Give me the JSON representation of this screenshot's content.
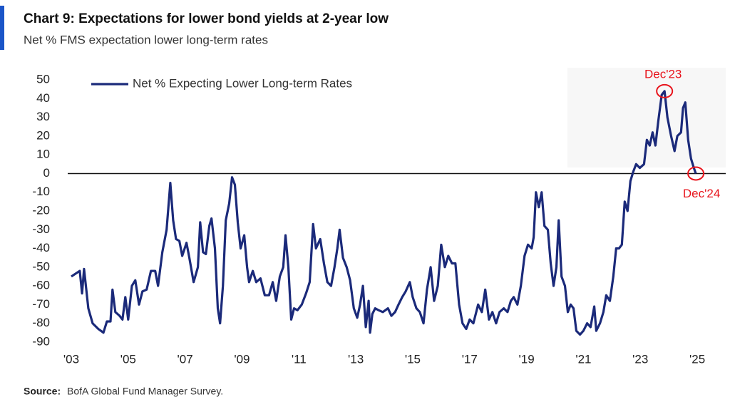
{
  "chart_data": {
    "type": "line",
    "title": "Chart 9: Expectations for lower bond yields at 2-year low",
    "subtitle": "Net % FMS expectation lower long-term rates",
    "source_label": "Source:",
    "source": "BofA Global Fund Manager Survey.",
    "xlim": [
      2002.6,
      2026.0
    ],
    "xticks": [
      {
        "value": 2003,
        "label": "'03"
      },
      {
        "value": 2005,
        "label": "'05"
      },
      {
        "value": 2007,
        "label": "'07"
      },
      {
        "value": 2009,
        "label": "'09"
      },
      {
        "value": 2011,
        "label": "'11"
      },
      {
        "value": 2013,
        "label": "'13"
      },
      {
        "value": 2015,
        "label": "'15"
      },
      {
        "value": 2017,
        "label": "'17"
      },
      {
        "value": 2019,
        "label": "'19"
      },
      {
        "value": 2021,
        "label": "'21"
      },
      {
        "value": 2023,
        "label": "'23"
      },
      {
        "value": 2025,
        "label": "'25"
      }
    ],
    "ylim": [
      -95,
      55
    ],
    "yticks": [
      50,
      40,
      30,
      20,
      10,
      0,
      -10,
      -20,
      -30,
      -40,
      -50,
      -60,
      -70,
      -80,
      -90
    ],
    "grid": false,
    "legend": "top-left",
    "annotations": [
      {
        "text": "Dec'23",
        "x": 2023.85,
        "y": 44,
        "color": "#e8141c"
      },
      {
        "text": "Dec'24",
        "x": 2024.95,
        "y": 0,
        "color": "#e8141c"
      }
    ],
    "x": [
      2003,
      2003.2,
      2003.3,
      2003.38,
      2003.45,
      2003.6,
      2003.75,
      2003.95,
      2004.13,
      2004.25,
      2004.38,
      2004.45,
      2004.55,
      2004.7,
      2004.8,
      2004.9,
      2005.0,
      2005.13,
      2005.25,
      2005.38,
      2005.5,
      2005.65,
      2005.8,
      2005.95,
      2006.05,
      2006.2,
      2006.35,
      2006.48,
      2006.58,
      2006.68,
      2006.8,
      2006.9,
      2007.05,
      2007.15,
      2007.3,
      2007.45,
      2007.53,
      2007.63,
      2007.73,
      2007.85,
      2007.93,
      2008.05,
      2008.15,
      2008.23,
      2008.33,
      2008.43,
      2008.55,
      2008.65,
      2008.75,
      2008.85,
      2008.95,
      2009.08,
      2009.18,
      2009.25,
      2009.38,
      2009.5,
      2009.65,
      2009.8,
      2009.95,
      2010.08,
      2010.2,
      2010.33,
      2010.45,
      2010.53,
      2010.63,
      2010.73,
      2010.83,
      2010.95,
      2011.1,
      2011.25,
      2011.38,
      2011.5,
      2011.6,
      2011.75,
      2011.88,
      2012.0,
      2012.13,
      2012.25,
      2012.35,
      2012.43,
      2012.55,
      2012.68,
      2012.8,
      2012.93,
      2013.05,
      2013.15,
      2013.25,
      2013.35,
      2013.45,
      2013.5,
      2013.58,
      2013.68,
      2013.8,
      2013.95,
      2014.13,
      2014.25,
      2014.38,
      2014.5,
      2014.63,
      2014.75,
      2014.9,
      2015.0,
      2015.13,
      2015.25,
      2015.38,
      2015.5,
      2015.63,
      2015.75,
      2015.88,
      2016.0,
      2016.13,
      2016.25,
      2016.38,
      2016.5,
      2016.63,
      2016.75,
      2016.88,
      2017.0,
      2017.13,
      2017.3,
      2017.43,
      2017.55,
      2017.68,
      2017.8,
      2017.93,
      2018.05,
      2018.2,
      2018.33,
      2018.45,
      2018.55,
      2018.68,
      2018.8,
      2018.93,
      2019.05,
      2019.18,
      2019.25,
      2019.33,
      2019.43,
      2019.53,
      2019.63,
      2019.75,
      2019.85,
      2019.95,
      2020.05,
      2020.13,
      2020.23,
      2020.35,
      2020.45,
      2020.55,
      2020.65,
      2020.75,
      2020.88,
      2021.0,
      2021.13,
      2021.25,
      2021.38,
      2021.45,
      2021.58,
      2021.7,
      2021.8,
      2021.93,
      2022.05,
      2022.15,
      2022.25,
      2022.35,
      2022.45,
      2022.55,
      2022.65,
      2022.75,
      2022.85,
      2022.98,
      2023.13,
      2023.23,
      2023.33,
      2023.43,
      2023.53,
      2023.63,
      2023.75,
      2023.85,
      2023.95,
      2024.08,
      2024.2,
      2024.3,
      2024.43,
      2024.5,
      2024.58,
      2024.68,
      2024.78,
      2024.88,
      2024.95
    ],
    "series": [
      {
        "name": "Net % Expecting Lower Long-term Rates",
        "color": "#1b2a7a",
        "values": [
          -55,
          -53,
          -52,
          -64,
          -51,
          -72,
          -80,
          -83,
          -85,
          -79,
          -79,
          -62,
          -74,
          -76,
          -78,
          -66,
          -78,
          -60,
          -57,
          -70,
          -63,
          -62,
          -52,
          -52,
          -60,
          -42,
          -30,
          -5,
          -25,
          -35,
          -36,
          -44,
          -37,
          -45,
          -58,
          -50,
          -26,
          -42,
          -43,
          -28,
          -24,
          -40,
          -72,
          -80,
          -60,
          -25,
          -16,
          -2,
          -6,
          -26,
          -40,
          -33,
          -50,
          -58,
          -52,
          -58,
          -56,
          -65,
          -65,
          -58,
          -68,
          -55,
          -50,
          -33,
          -50,
          -78,
          -72,
          -73,
          -70,
          -64,
          -58,
          -27,
          -40,
          -35,
          -48,
          -58,
          -60,
          -50,
          -40,
          -30,
          -45,
          -50,
          -57,
          -72,
          -77,
          -70,
          -60,
          -82,
          -68,
          -85,
          -75,
          -72,
          -73,
          -74,
          -72,
          -76,
          -74,
          -70,
          -66,
          -63,
          -58,
          -66,
          -72,
          -74,
          -80,
          -62,
          -50,
          -68,
          -60,
          -38,
          -50,
          -44,
          -48,
          -48,
          -70,
          -80,
          -83,
          -78,
          -80,
          -70,
          -74,
          -62,
          -78,
          -74,
          -80,
          -74,
          -72,
          -74,
          -68,
          -66,
          -70,
          -60,
          -44,
          -38,
          -40,
          -34,
          -10,
          -18,
          -10,
          -28,
          -30,
          -48,
          -60,
          -50,
          -25,
          -55,
          -60,
          -74,
          -70,
          -72,
          -84,
          -86,
          -84,
          -80,
          -82,
          -71,
          -84,
          -80,
          -74,
          -65,
          -68,
          -55,
          -40,
          -40,
          -38,
          -15,
          -20,
          -4,
          1,
          5,
          3,
          5,
          18,
          15,
          22,
          15,
          28,
          42,
          44,
          30,
          20,
          12,
          20,
          22,
          35,
          38,
          18,
          8,
          3,
          0
        ]
      }
    ]
  }
}
